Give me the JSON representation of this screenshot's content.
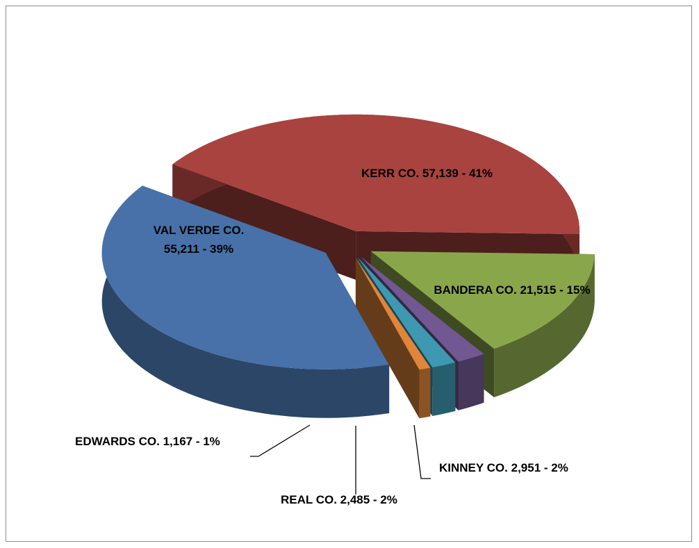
{
  "chart_data": {
    "type": "pie3d",
    "categories": [
      "KERR CO.",
      "BANDERA CO.",
      "KINNEY CO.",
      "REAL CO.",
      "EDWARDS CO.",
      "VAL VERDE CO."
    ],
    "values": [
      57139,
      21515,
      2951,
      2485,
      1167,
      55211
    ],
    "value_labels": [
      "57,139 - 41%",
      "21,515 - 15%",
      "2,951 - 2%",
      "2,485 - 2%",
      "1,167 - 1%",
      "55,211 - 39%"
    ],
    "colors": [
      "#a9433f",
      "#8aa64b",
      "#715892",
      "#3f98b1",
      "#e0853a",
      "#4771a8"
    ]
  }
}
